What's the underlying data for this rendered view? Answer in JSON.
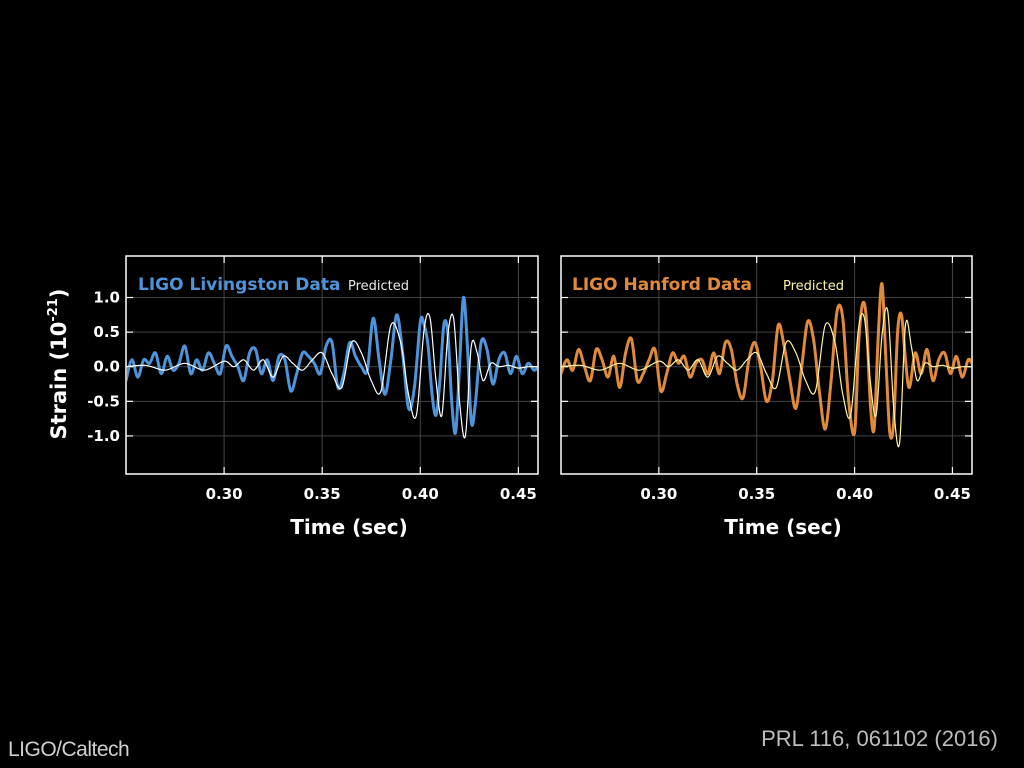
{
  "credits": {
    "left": "LIGO/Caltech",
    "right": "PRL 116, 061102 (2016)"
  },
  "colors": {
    "background": "#000000",
    "livingston": "#4f93d9",
    "livingston_pred": "#ffffff",
    "hanford": "#e08a3b",
    "hanford_pred": "#fff3a0",
    "grid": "#444444",
    "frame": "#ffffff"
  },
  "chart_data": [
    {
      "type": "line",
      "title": "LIGO Livingston Data",
      "ylabel_base": "Strain (10",
      "ylabel_exp": "-21",
      "ylabel_close": ")",
      "xlabel": "Time (sec)",
      "xlim": [
        0.25,
        0.46
      ],
      "ylim": [
        -1.55,
        1.6
      ],
      "xticks": [
        0.3,
        0.35,
        0.4,
        0.45
      ],
      "xtick_labels": [
        "0.30",
        "0.35",
        "0.40",
        "0.45"
      ],
      "yticks": [
        1.0,
        0.5,
        0.0,
        -0.5,
        -1.0
      ],
      "ytick_labels": [
        "1.0",
        "0.5",
        "0.0",
        "-0.5",
        "-1.0"
      ],
      "grid": true,
      "series": [
        {
          "name": "LIGO Livingston Data",
          "role": "data",
          "x": [
            0.25,
            0.253,
            0.256,
            0.259,
            0.262,
            0.265,
            0.268,
            0.271,
            0.274,
            0.277,
            0.28,
            0.283,
            0.286,
            0.289,
            0.292,
            0.295,
            0.298,
            0.301,
            0.304,
            0.307,
            0.31,
            0.313,
            0.316,
            0.319,
            0.322,
            0.325,
            0.328,
            0.331,
            0.334,
            0.337,
            0.34,
            0.343,
            0.346,
            0.349,
            0.352,
            0.355,
            0.358,
            0.361,
            0.364,
            0.367,
            0.37,
            0.373,
            0.376,
            0.379,
            0.382,
            0.385,
            0.388,
            0.391,
            0.394,
            0.397,
            0.4,
            0.402,
            0.404,
            0.406,
            0.408,
            0.41,
            0.412,
            0.414,
            0.416,
            0.418,
            0.42,
            0.422,
            0.424,
            0.426,
            0.428,
            0.431,
            0.434,
            0.437,
            0.44,
            0.443,
            0.446,
            0.449,
            0.452,
            0.455,
            0.458,
            0.46
          ],
          "y": [
            -0.2,
            0.1,
            -0.15,
            0.1,
            0.05,
            0.2,
            -0.1,
            0.15,
            -0.05,
            0.05,
            0.3,
            -0.1,
            0.1,
            -0.05,
            0.2,
            0.05,
            -0.1,
            0.3,
            0.15,
            0.0,
            -0.2,
            0.2,
            0.25,
            -0.1,
            0.1,
            -0.2,
            0.15,
            0.1,
            -0.35,
            -0.1,
            0.2,
            0.15,
            0.05,
            -0.1,
            0.3,
            0.35,
            -0.3,
            -0.1,
            0.35,
            0.15,
            0.0,
            -0.05,
            0.7,
            0.1,
            -0.4,
            0.1,
            0.75,
            0.2,
            -0.6,
            -0.3,
            0.65,
            0.6,
            0.3,
            -0.4,
            -0.7,
            -0.2,
            0.6,
            0.5,
            -0.5,
            -0.95,
            0.0,
            1.0,
            0.3,
            -0.8,
            -0.55,
            0.35,
            0.25,
            -0.25,
            0.1,
            0.2,
            -0.1,
            0.15,
            -0.1,
            0.05,
            -0.05,
            0.0
          ]
        },
        {
          "name": "Predicted",
          "role": "predicted",
          "x": [
            0.25,
            0.26,
            0.27,
            0.28,
            0.29,
            0.3,
            0.305,
            0.31,
            0.315,
            0.32,
            0.325,
            0.33,
            0.335,
            0.34,
            0.345,
            0.35,
            0.355,
            0.36,
            0.365,
            0.37,
            0.375,
            0.38,
            0.385,
            0.39,
            0.394,
            0.398,
            0.402,
            0.405,
            0.408,
            0.411,
            0.414,
            0.417,
            0.42,
            0.423,
            0.426,
            0.429,
            0.432,
            0.436,
            0.44,
            0.445,
            0.45,
            0.455,
            0.46
          ],
          "y": [
            0.0,
            0.02,
            -0.05,
            0.05,
            -0.05,
            0.08,
            0.0,
            0.1,
            -0.05,
            0.1,
            -0.15,
            0.15,
            0.05,
            -0.05,
            0.1,
            0.2,
            -0.1,
            -0.3,
            0.35,
            0.2,
            -0.2,
            -0.35,
            0.6,
            0.35,
            -0.4,
            -0.7,
            0.55,
            0.7,
            -0.2,
            -0.7,
            0.45,
            0.7,
            -0.5,
            -1.0,
            0.3,
            0.2,
            -0.2,
            0.05,
            0.0,
            0.02,
            -0.02,
            0.0,
            0.0
          ]
        }
      ]
    },
    {
      "type": "line",
      "title": "LIGO Hanford Data",
      "xlabel": "Time (sec)",
      "xlim": [
        0.25,
        0.46
      ],
      "ylim": [
        -1.55,
        1.6
      ],
      "xticks": [
        0.3,
        0.35,
        0.4,
        0.45
      ],
      "xtick_labels": [
        "0.30",
        "0.35",
        "0.40",
        "0.45"
      ],
      "yticks": [
        1.0,
        0.5,
        0.0,
        -0.5,
        -1.0
      ],
      "grid": true,
      "series": [
        {
          "name": "LIGO Hanford Data",
          "role": "data",
          "x": [
            0.25,
            0.253,
            0.256,
            0.259,
            0.262,
            0.265,
            0.268,
            0.271,
            0.274,
            0.277,
            0.28,
            0.283,
            0.286,
            0.289,
            0.292,
            0.295,
            0.298,
            0.301,
            0.304,
            0.307,
            0.31,
            0.313,
            0.316,
            0.319,
            0.322,
            0.325,
            0.328,
            0.331,
            0.334,
            0.337,
            0.34,
            0.343,
            0.346,
            0.349,
            0.352,
            0.355,
            0.358,
            0.361,
            0.364,
            0.367,
            0.37,
            0.373,
            0.376,
            0.379,
            0.382,
            0.385,
            0.388,
            0.391,
            0.394,
            0.397,
            0.4,
            0.402,
            0.404,
            0.406,
            0.408,
            0.41,
            0.412,
            0.414,
            0.416,
            0.418,
            0.42,
            0.422,
            0.424,
            0.426,
            0.428,
            0.431,
            0.434,
            0.437,
            0.44,
            0.443,
            0.446,
            0.449,
            0.452,
            0.455,
            0.458,
            0.46
          ],
          "y": [
            -0.1,
            0.1,
            -0.05,
            0.25,
            0.0,
            -0.2,
            0.25,
            0.1,
            -0.15,
            0.15,
            -0.3,
            0.2,
            0.4,
            -0.2,
            -0.1,
            0.1,
            0.25,
            -0.35,
            -0.1,
            0.2,
            0.05,
            0.15,
            -0.15,
            0.05,
            0.1,
            -0.1,
            0.2,
            -0.1,
            0.35,
            0.25,
            -0.25,
            -0.45,
            0.1,
            0.35,
            0.0,
            -0.5,
            -0.2,
            0.6,
            0.3,
            -0.2,
            -0.6,
            0.0,
            0.65,
            0.4,
            -0.35,
            -0.9,
            -0.2,
            0.8,
            0.7,
            -0.5,
            -0.95,
            0.3,
            0.9,
            0.7,
            -0.5,
            -0.9,
            0.4,
            1.2,
            0.1,
            -0.95,
            -0.8,
            0.5,
            0.75,
            0.1,
            -0.3,
            0.2,
            -0.1,
            0.25,
            -0.2,
            0.1,
            0.2,
            -0.1,
            0.15,
            -0.15,
            0.1,
            0.05
          ]
        },
        {
          "name": "Predicted",
          "role": "predicted",
          "x": [
            0.25,
            0.26,
            0.27,
            0.28,
            0.29,
            0.3,
            0.305,
            0.31,
            0.315,
            0.32,
            0.325,
            0.33,
            0.335,
            0.34,
            0.345,
            0.35,
            0.355,
            0.36,
            0.365,
            0.37,
            0.375,
            0.38,
            0.385,
            0.39,
            0.394,
            0.398,
            0.402,
            0.405,
            0.408,
            0.411,
            0.414,
            0.417,
            0.42,
            0.423,
            0.426,
            0.429,
            0.432,
            0.436,
            0.44,
            0.445,
            0.45,
            0.455,
            0.46
          ],
          "y": [
            0.0,
            0.02,
            -0.05,
            0.05,
            -0.05,
            0.08,
            0.0,
            0.1,
            -0.05,
            0.1,
            -0.15,
            0.15,
            0.05,
            -0.05,
            0.1,
            0.2,
            -0.1,
            -0.3,
            0.35,
            0.2,
            -0.2,
            -0.35,
            0.6,
            0.35,
            -0.4,
            -0.7,
            0.55,
            0.7,
            -0.2,
            -0.7,
            0.45,
            0.8,
            -0.6,
            -1.1,
            0.6,
            0.3,
            -0.2,
            0.05,
            0.0,
            0.02,
            -0.02,
            0.0,
            0.0
          ]
        }
      ]
    }
  ]
}
